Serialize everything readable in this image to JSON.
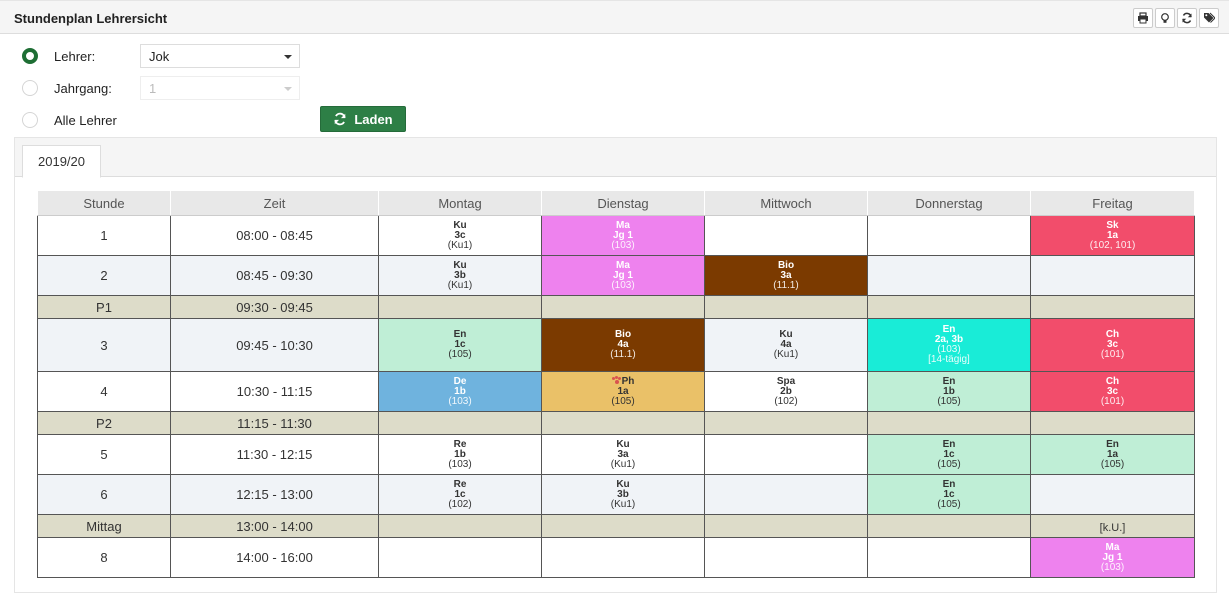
{
  "header": {
    "title": "Stundenplan Lehrersicht"
  },
  "toolbar": {
    "icons": [
      "print-icon",
      "lightbulb-icon",
      "refresh-icon",
      "tags-icon"
    ]
  },
  "filters": {
    "teacher_label": "Lehrer:",
    "teacher_value": "Jok",
    "year_label": "Jahrgang:",
    "year_value": "1",
    "all_label": "Alle Lehrer",
    "load_label": "Laden"
  },
  "tabs": [
    {
      "label": "2019/20",
      "active": true
    }
  ],
  "timetable": {
    "headers": [
      "Stunde",
      "Zeit",
      "Montag",
      "Dienstag",
      "Mittwoch",
      "Donnerstag",
      "Freitag"
    ],
    "rows": [
      {
        "stunde": "1",
        "zeit": "08:00 - 08:45",
        "h": 40,
        "bg": "w",
        "cells": [
          {
            "fach": "Ku",
            "klasse": "3c",
            "raum": "(Ku1)"
          },
          {
            "fach": "Ma",
            "klasse": "Jg 1",
            "raum": "(103)",
            "color": "#ee82ee"
          },
          null,
          null,
          {
            "fach": "Sk",
            "klasse": "1a",
            "raum": "(102, 101)",
            "color": "#f24d6b"
          }
        ]
      },
      {
        "stunde": "2",
        "zeit": "08:45 - 09:30",
        "h": 40,
        "bg": "g",
        "cells": [
          {
            "fach": "Ku",
            "klasse": "3b",
            "raum": "(Ku1)"
          },
          {
            "fach": "Ma",
            "klasse": "Jg 1",
            "raum": "(103)",
            "color": "#ee82ee"
          },
          {
            "fach": "Bio",
            "klasse": "3a",
            "raum": "(11.1)",
            "color": "#7b3a00"
          },
          null,
          null
        ]
      },
      {
        "stunde": "P1",
        "zeit": "09:30 - 09:45",
        "h": 23,
        "bg": "p",
        "cells": [
          null,
          null,
          null,
          null,
          null
        ]
      },
      {
        "stunde": "3",
        "zeit": "09:45 - 10:30",
        "h": 53,
        "bg": "g",
        "cells": [
          {
            "fach": "En",
            "klasse": "1c",
            "raum": "(105)",
            "color": "#bfeed6",
            "dark": true
          },
          {
            "fach": "Bio",
            "klasse": "4a",
            "raum": "(11.1)",
            "color": "#7b3a00"
          },
          {
            "fach": "Ku",
            "klasse": "4a",
            "raum": "(Ku1)"
          },
          {
            "fach": "En",
            "klasse": "2a, 3b",
            "raum": "(103)",
            "note": "[14-tägig]",
            "color": "#19ecd7"
          },
          {
            "fach": "Ch",
            "klasse": "3c",
            "raum": "(101)",
            "color": "#f24d6b"
          }
        ]
      },
      {
        "stunde": "4",
        "zeit": "10:30 - 11:15",
        "h": 40,
        "bg": "w",
        "cells": [
          {
            "fach": "De",
            "klasse": "1b",
            "raum": "(103)",
            "color": "#6fb3de"
          },
          {
            "fach": "Ph",
            "klasse": "1a",
            "raum": "(105)",
            "color": "#eac168",
            "dark": true,
            "icon": "paw-icon"
          },
          {
            "fach": "Spa",
            "klasse": "2b",
            "raum": "(102)"
          },
          {
            "fach": "En",
            "klasse": "1b",
            "raum": "(105)",
            "color": "#bfeed6",
            "dark": true
          },
          {
            "fach": "Ch",
            "klasse": "3c",
            "raum": "(101)",
            "color": "#f24d6b"
          }
        ]
      },
      {
        "stunde": "P2",
        "zeit": "11:15 - 11:30",
        "h": 23,
        "bg": "p",
        "cells": [
          null,
          null,
          null,
          null,
          null
        ]
      },
      {
        "stunde": "5",
        "zeit": "11:30 - 12:15",
        "h": 40,
        "bg": "w",
        "cells": [
          {
            "fach": "Re",
            "klasse": "1b",
            "raum": "(103)"
          },
          {
            "fach": "Ku",
            "klasse": "3a",
            "raum": "(Ku1)"
          },
          null,
          {
            "fach": "En",
            "klasse": "1c",
            "raum": "(105)",
            "color": "#bfeed6",
            "dark": true
          },
          {
            "fach": "En",
            "klasse": "1a",
            "raum": "(105)",
            "color": "#bfeed6",
            "dark": true
          }
        ]
      },
      {
        "stunde": "6",
        "zeit": "12:15 - 13:00",
        "h": 40,
        "bg": "g",
        "cells": [
          {
            "fach": "Re",
            "klasse": "1c",
            "raum": "(102)"
          },
          {
            "fach": "Ku",
            "klasse": "3b",
            "raum": "(Ku1)"
          },
          null,
          {
            "fach": "En",
            "klasse": "1c",
            "raum": "(105)",
            "color": "#bfeed6",
            "dark": true
          },
          null
        ]
      },
      {
        "stunde": "Mittag",
        "zeit": "13:00 - 14:00",
        "h": 23,
        "bg": "p",
        "cells": [
          null,
          null,
          null,
          null,
          {
            "text": "[k.U.]"
          }
        ]
      },
      {
        "stunde": "8",
        "zeit": "14:00 - 16:00",
        "h": 40,
        "bg": "w",
        "cells": [
          null,
          null,
          null,
          null,
          {
            "fach": "Ma",
            "klasse": "Jg 1",
            "raum": "(103)",
            "color": "#ee82ee"
          }
        ]
      }
    ]
  }
}
